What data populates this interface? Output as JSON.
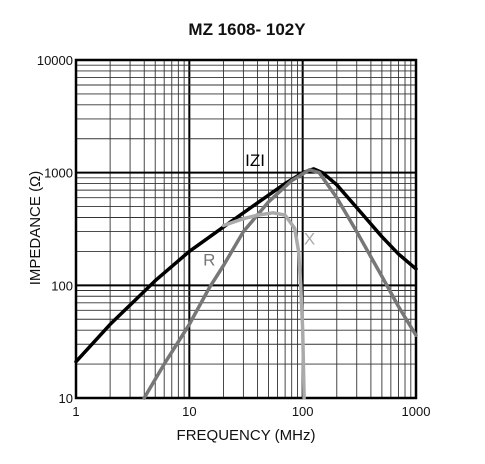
{
  "chart_data": {
    "type": "line",
    "title": "MZ 1608-  102Y",
    "xlabel": "FREQUENCY (MHz)",
    "ylabel": "IMPEDANCE (Ω)",
    "x_scale": "log",
    "y_scale": "log",
    "xlim": [
      1,
      1000
    ],
    "ylim": [
      10,
      10000
    ],
    "x_ticks": [
      "1",
      "10",
      "100",
      "1000"
    ],
    "y_ticks": [
      "10",
      "100",
      "1000",
      "10000"
    ],
    "grid": true,
    "series": [
      {
        "name": "IZI",
        "color": "#000000",
        "points": [
          [
            1,
            21
          ],
          [
            2,
            45
          ],
          [
            5,
            110
          ],
          [
            10,
            200
          ],
          [
            20,
            330
          ],
          [
            40,
            540
          ],
          [
            70,
            800
          ],
          [
            100,
            1000
          ],
          [
            125,
            1080
          ],
          [
            150,
            1000
          ],
          [
            200,
            780
          ],
          [
            300,
            490
          ],
          [
            500,
            270
          ],
          [
            700,
            190
          ],
          [
            1000,
            140
          ]
        ]
      },
      {
        "name": "R",
        "color": "#777777",
        "points": [
          [
            4,
            10
          ],
          [
            6,
            20
          ],
          [
            10,
            45
          ],
          [
            15,
            95
          ],
          [
            20,
            150
          ],
          [
            30,
            300
          ],
          [
            50,
            550
          ],
          [
            80,
            850
          ],
          [
            115,
            1060
          ],
          [
            140,
            1000
          ],
          [
            200,
            600
          ],
          [
            300,
            300
          ],
          [
            500,
            120
          ],
          [
            700,
            65
          ],
          [
            1000,
            36
          ]
        ]
      },
      {
        "name": "X",
        "color": "#aaaaaa",
        "points": [
          [
            20,
            340
          ],
          [
            30,
            390
          ],
          [
            40,
            420
          ],
          [
            55,
            440
          ],
          [
            70,
            420
          ],
          [
            85,
            320
          ],
          [
            92,
            200
          ],
          [
            96,
            100
          ],
          [
            100,
            40
          ],
          [
            103,
            10
          ]
        ]
      }
    ]
  }
}
